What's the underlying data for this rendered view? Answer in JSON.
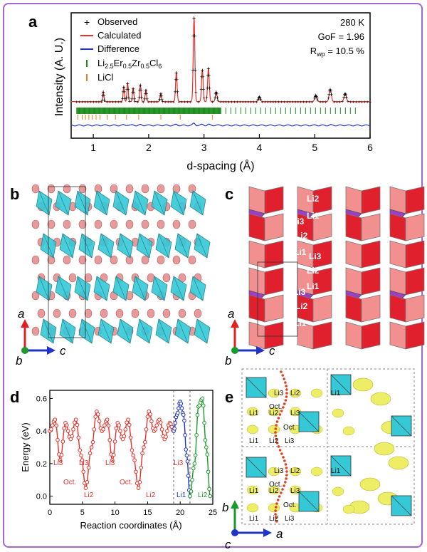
{
  "figure": {
    "border_color": "#a566d8",
    "panels": [
      "a",
      "b",
      "c",
      "d",
      "e"
    ]
  },
  "panel_a": {
    "annotations": [
      "280 K",
      "GoF = 1.96",
      "R",
      "wp",
      " = 10.5 %"
    ],
    "legend": {
      "observed": "Observed",
      "calculated": "Calculated",
      "difference": "Difference",
      "phase1": {
        "a": "Li",
        "a_sub": "2.5",
        "b": "Er",
        "b_sub": "0.5",
        "c": "Zr",
        "c_sub": "0.5",
        "d": "Cl",
        "d_sub": "6"
      },
      "phase2": "LiCl"
    },
    "colors": {
      "observed": "#000000",
      "calculated": "#e8302a",
      "difference": "#1f33c7",
      "phase1_ticks": "#1a8a1a",
      "phase2_ticks": "#e87e1c"
    }
  },
  "chart_data": [
    {
      "type": "line",
      "panel": "a",
      "xlabel": "d-spacing (Å)",
      "ylabel": "Intensity (A. U.)",
      "xlim": [
        0.6,
        6.0
      ],
      "x_ticks": [
        1,
        2,
        3,
        4,
        5,
        6
      ],
      "series": [
        {
          "name": "Observed",
          "peaks": [
            [
              1.18,
              0.12
            ],
            [
              1.55,
              0.18
            ],
            [
              1.62,
              0.22
            ],
            [
              1.72,
              0.16
            ],
            [
              1.85,
              0.2
            ],
            [
              1.95,
              0.14
            ],
            [
              2.22,
              0.1
            ],
            [
              2.5,
              0.35
            ],
            [
              2.82,
              1.0
            ],
            [
              2.97,
              0.38
            ],
            [
              3.08,
              0.4
            ],
            [
              3.22,
              0.12
            ],
            [
              4.0,
              0.06
            ],
            [
              5.02,
              0.08
            ],
            [
              5.28,
              0.15
            ],
            [
              5.55,
              0.1
            ]
          ]
        },
        {
          "name": "Calculated",
          "peaks": [
            [
              1.18,
              0.12
            ],
            [
              1.55,
              0.18
            ],
            [
              1.62,
              0.22
            ],
            [
              1.72,
              0.16
            ],
            [
              1.85,
              0.2
            ],
            [
              1.95,
              0.14
            ],
            [
              2.22,
              0.1
            ],
            [
              2.5,
              0.35
            ],
            [
              2.82,
              1.0
            ],
            [
              2.97,
              0.38
            ],
            [
              3.08,
              0.4
            ],
            [
              3.22,
              0.12
            ],
            [
              4.0,
              0.06
            ],
            [
              5.02,
              0.08
            ],
            [
              5.28,
              0.15
            ],
            [
              5.55,
              0.1
            ]
          ]
        },
        {
          "name": "Difference"
        }
      ]
    },
    {
      "type": "line",
      "panel": "d",
      "xlabel": "Reaction coordinates (Å)",
      "ylabel": "Energy (eV)",
      "xlim": [
        0,
        25
      ],
      "ylim": [
        -0.05,
        0.65
      ],
      "x_ticks": [
        0,
        5,
        10,
        15,
        20,
        25
      ],
      "y_ticks": [
        0.0,
        0.2,
        0.4,
        0.6
      ],
      "series": [
        {
          "color": "#e8302a",
          "x": [
            0,
            0.8,
            1.6,
            2.4,
            3.2,
            4.0,
            4.8,
            5.5,
            6.4,
            7.2,
            8.0,
            8.8,
            9.6,
            10.4,
            11.2,
            12.0,
            12.8,
            13.6,
            14.4,
            15.2,
            16.0,
            16.8,
            17.6,
            18.4,
            19.0
          ],
          "y": [
            0.4,
            0.47,
            0.22,
            0.45,
            0.35,
            0.47,
            0.25,
            0.05,
            0.3,
            0.52,
            0.4,
            0.47,
            0.22,
            0.45,
            0.35,
            0.47,
            0.25,
            0.05,
            0.3,
            0.52,
            0.4,
            0.47,
            0.35,
            0.45,
            0.4
          ]
        },
        {
          "color": "#1f33c7",
          "x": [
            19.0,
            19.5,
            20.0,
            20.5,
            21.0,
            21.5
          ],
          "y": [
            0.4,
            0.5,
            0.58,
            0.5,
            0.25,
            0.0
          ]
        },
        {
          "color": "#1a9a2a",
          "x": [
            21.5,
            22.2,
            22.8,
            23.4,
            24.0,
            24.6
          ],
          "y": [
            0.0,
            0.2,
            0.55,
            0.6,
            0.3,
            0.0
          ]
        }
      ],
      "point_labels": [
        "Li3",
        "Li3",
        "Oct.",
        "Li2",
        "Li3",
        "Oct.",
        "Li2",
        "Li3",
        "Li1",
        "Li2"
      ]
    }
  ],
  "panel_b": {
    "axes": {
      "a": "a",
      "b": "b",
      "c": "c"
    },
    "colors": {
      "octahedra": "#35c8d6",
      "atoms": "#e89a9a"
    }
  },
  "panel_c": {
    "site_labels": [
      "Li2",
      "Li1",
      "Li3",
      "Li2",
      "Li1",
      "Li3",
      "Li2",
      "Li1",
      "Li3",
      "Li2",
      "Li1"
    ],
    "axes": {
      "a": "a",
      "b": "b",
      "c": "c"
    },
    "colors": {
      "light": "#f29090",
      "red": "#e0202c",
      "purple": "#9b3fc6"
    }
  },
  "panel_e": {
    "labels": [
      "Li3",
      "Li2",
      "Li1",
      "Oct.",
      "Li1",
      "Li2",
      "Li3",
      "Oct.",
      "Li1",
      "Li2",
      "Li3",
      "Li3",
      "Li2",
      "Li1",
      "Oct.",
      "Li1",
      "Li2",
      "Li3",
      "Oct.",
      "Li1",
      "Li2",
      "Li3"
    ],
    "axes": {
      "b": "b",
      "c": "c",
      "a": "a"
    },
    "colors": {
      "isosurface": "#eeee66",
      "octahedra": "#35c8d6",
      "path": "#e04020"
    }
  }
}
